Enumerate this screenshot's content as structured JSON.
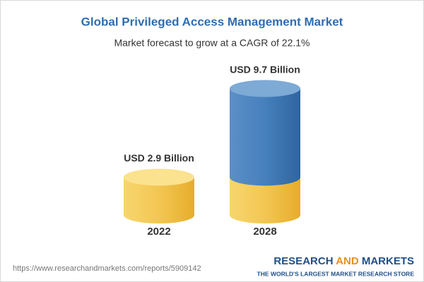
{
  "chart_data": {
    "type": "cylinder",
    "title": "Global Privileged Access Management Market",
    "subtitle": "Market forecast to grow at a CAGR of 22.1%",
    "categories": [
      "2022",
      "2028"
    ],
    "values": [
      2.9,
      9.7
    ],
    "value_labels": [
      "USD 2.9 Billion",
      "USD 9.7 Billion"
    ],
    "colors": [
      "#f2c14a",
      "#3f7ab7"
    ]
  },
  "footer": {
    "url": "https://www.researchandmarkets.com/reports/5909142",
    "brand": [
      "RESEARCH",
      "AND",
      "MARKETS"
    ],
    "tagline": "THE WORLD'S LARGEST MARKET RESEARCH STORE"
  }
}
